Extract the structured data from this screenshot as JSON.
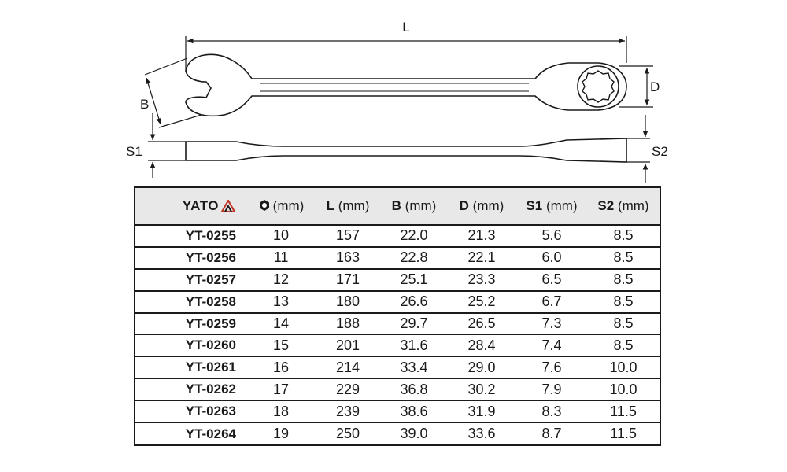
{
  "drawing": {
    "labels": {
      "L": "L",
      "B": "B",
      "D": "D",
      "S1": "S1",
      "S2": "S2"
    }
  },
  "table": {
    "brand": "YATO",
    "headers": {
      "size_unit": "(mm)",
      "L": "L",
      "L_unit": "(mm)",
      "B": "B",
      "B_unit": "(mm)",
      "D": "D",
      "D_unit": "(mm)",
      "S1": "S1",
      "S1_unit": "(mm)",
      "S2": "S2",
      "S2_unit": "(mm)"
    },
    "rows": [
      {
        "code": "YT-0255",
        "size": "10",
        "L": "157",
        "B": "22.0",
        "D": "21.3",
        "S1": "5.6",
        "S2": "8.5"
      },
      {
        "code": "YT-0256",
        "size": "11",
        "L": "163",
        "B": "22.8",
        "D": "22.1",
        "S1": "6.0",
        "S2": "8.5"
      },
      {
        "code": "YT-0257",
        "size": "12",
        "L": "171",
        "B": "25.1",
        "D": "23.3",
        "S1": "6.5",
        "S2": "8.5"
      },
      {
        "code": "YT-0258",
        "size": "13",
        "L": "180",
        "B": "26.6",
        "D": "25.2",
        "S1": "6.7",
        "S2": "8.5"
      },
      {
        "code": "YT-0259",
        "size": "14",
        "L": "188",
        "B": "29.7",
        "D": "26.5",
        "S1": "7.3",
        "S2": "8.5"
      },
      {
        "code": "YT-0260",
        "size": "15",
        "L": "201",
        "B": "31.6",
        "D": "28.4",
        "S1": "7.4",
        "S2": "8.5"
      },
      {
        "code": "YT-0261",
        "size": "16",
        "L": "214",
        "B": "33.4",
        "D": "29.0",
        "S1": "7.6",
        "S2": "10.0"
      },
      {
        "code": "YT-0262",
        "size": "17",
        "L": "229",
        "B": "36.8",
        "D": "30.2",
        "S1": "7.9",
        "S2": "10.0"
      },
      {
        "code": "YT-0263",
        "size": "18",
        "L": "239",
        "B": "38.6",
        "D": "31.9",
        "S1": "8.3",
        "S2": "11.5"
      },
      {
        "code": "YT-0264",
        "size": "19",
        "L": "250",
        "B": "39.0",
        "D": "33.6",
        "S1": "8.7",
        "S2": "11.5"
      }
    ]
  }
}
